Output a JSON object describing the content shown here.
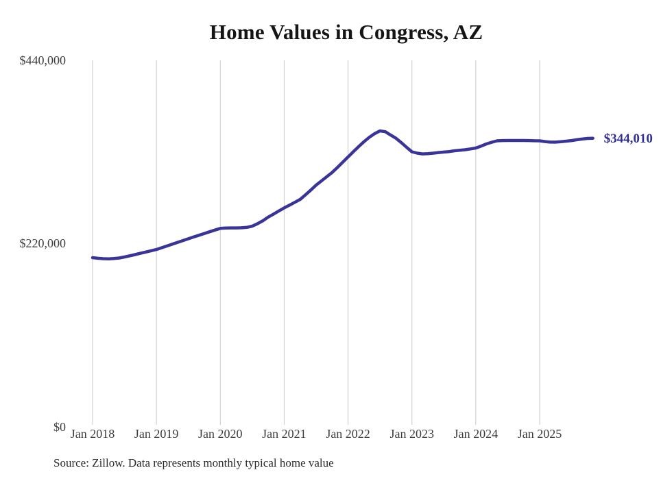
{
  "title": "Home Values in Congress, AZ",
  "source_note": "Source: Zillow. Data represents monthly typical home value",
  "colors": {
    "line": "#3a3499",
    "end_label": "#312f94",
    "gridline": "#c9c9c9",
    "axis_text": "#3d3d3d",
    "title_text": "#151515",
    "background": "#ffffff"
  },
  "chart_data": {
    "type": "line",
    "title": "Home Values in Congress, AZ",
    "series_name": "Monthly typical home value",
    "values_unit": "USD",
    "x_monthly_start": "2018-01",
    "x_monthly_end": "2025-11",
    "x_tick_labels": [
      "Jan 2018",
      "Jan 2019",
      "Jan 2020",
      "Jan 2021",
      "Jan 2022",
      "Jan 2023",
      "Jan 2024",
      "Jan 2025"
    ],
    "y_ticks": [
      {
        "label": "$0",
        "value": 0
      },
      {
        "label": "$220,000",
        "value": 220000
      },
      {
        "label": "$440,000",
        "value": 440000
      }
    ],
    "ylim": [
      0,
      440000
    ],
    "grid": "vertical-only",
    "legend": "none",
    "last_value": 344010,
    "last_value_label": "$344,010",
    "values": [
      200700,
      199900,
      199400,
      199300,
      199600,
      200300,
      201500,
      202900,
      204400,
      205900,
      207400,
      209000,
      210500,
      212600,
      214700,
      216900,
      219100,
      221200,
      223400,
      225500,
      227600,
      229700,
      231800,
      233800,
      235800,
      236200,
      236400,
      236400,
      236500,
      237000,
      238500,
      241500,
      245000,
      249400,
      253000,
      256800,
      260400,
      263700,
      267100,
      270600,
      276100,
      281800,
      287800,
      292800,
      297800,
      302900,
      308900,
      315200,
      321600,
      327800,
      334000,
      339900,
      345200,
      349500,
      352800,
      351800,
      347800,
      344000,
      338800,
      333100,
      327700,
      326100,
      325200,
      325500,
      326100,
      326800,
      327400,
      328000,
      329000,
      329600,
      330200,
      331200,
      332300,
      334600,
      337200,
      339200,
      340900,
      341200,
      341300,
      341300,
      341300,
      341300,
      341200,
      341000,
      340900,
      340000,
      339300,
      339300,
      339800,
      340500,
      341200,
      342200,
      343000,
      343800,
      344010
    ]
  }
}
